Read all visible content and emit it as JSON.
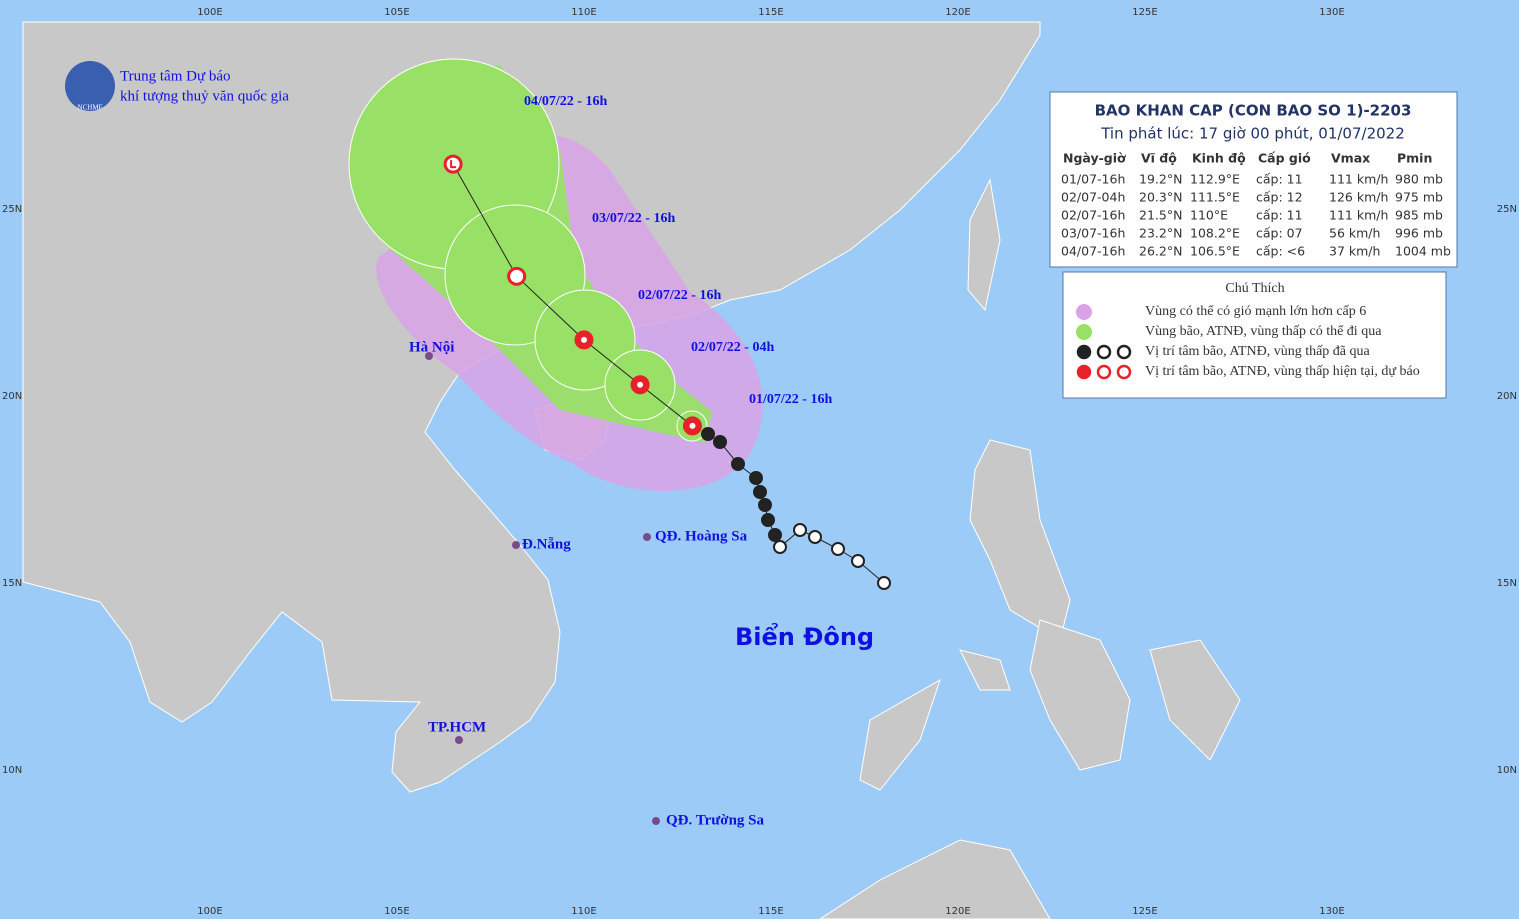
{
  "header": {
    "org_line1": "Trung tâm Dự báo",
    "org_line2": "khí tượng thuỷ văn quốc gia",
    "logo_text": "NCHMF"
  },
  "axes": {
    "longitudes": [
      "100E",
      "105E",
      "110E",
      "115E",
      "120E",
      "125E",
      "130E"
    ],
    "latitudes": [
      "25N",
      "20N",
      "15N",
      "10N"
    ]
  },
  "bulletin": {
    "title": "BAO KHAN CAP (CON BAO SO 1)-2203",
    "issued": "Tin phát lúc: 17 giờ 00 phút, 01/07/2022",
    "columns": [
      "Ngày-giờ",
      "Vĩ độ",
      "Kinh độ",
      "Cấp gió",
      "Vmax",
      "Pmin"
    ],
    "rows": [
      [
        "01/07-16h",
        "19.2°N",
        "112.9°E",
        "cấp: 11",
        "111 km/h",
        "980 mb"
      ],
      [
        "02/07-04h",
        "20.3°N",
        "111.5°E",
        "cấp: 12",
        "126 km/h",
        "975 mb"
      ],
      [
        "02/07-16h",
        "21.5°N",
        "110°E",
        "cấp: 11",
        "111 km/h",
        "985 mb"
      ],
      [
        "03/07-16h",
        "23.2°N",
        "108.2°E",
        "cấp: 07",
        "56 km/h",
        "996 mb"
      ],
      [
        "04/07-16h",
        "26.2°N",
        "106.5°E",
        "cấp: <6",
        "37 km/h",
        "1004 mb"
      ]
    ]
  },
  "legend": {
    "title": "Chú Thích",
    "items": [
      "Vùng có thể có gió mạnh lớn hơn cấp 6",
      "Vùng bão, ATNĐ, vùng thấp có thể đi qua",
      "Vị trí tâm bão, ATNĐ, vùng thấp đã qua",
      "Vị trí tâm bão, ATNĐ, vùng thấp hiện tại, dự báo"
    ]
  },
  "track_labels": [
    "04/07/22 - 16h",
    "03/07/22 - 16h",
    "02/07/22 - 16h",
    "02/07/22 - 04h",
    "01/07/22 - 16h"
  ],
  "places": [
    "Hà Nội",
    "Đ.Nẵng",
    "QĐ. Hoàng Sa",
    "TP.HCM",
    "QĐ. Trường Sa"
  ],
  "sea_label": "Biển Đông"
}
